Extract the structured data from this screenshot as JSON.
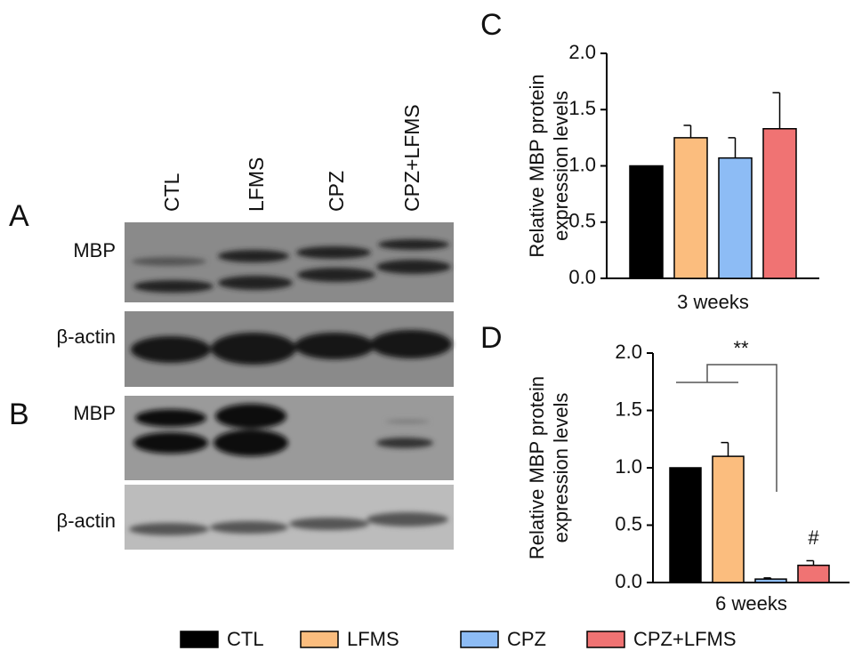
{
  "chart_data": [
    {
      "type": "bar",
      "panel": "C",
      "categories": [
        "3 weeks"
      ],
      "ylabel": [
        "Relative MBP protein",
        "expression levels"
      ],
      "ylim": [
        0,
        2
      ],
      "yticks": [
        {
          "value": 0,
          "label": "0.0"
        },
        {
          "value": 0.5,
          "label": "0.5"
        },
        {
          "value": 1,
          "label": "1.0"
        },
        {
          "value": 1.5,
          "label": "1.5"
        },
        {
          "value": 2,
          "label": "2.0"
        }
      ],
      "series": [
        {
          "name": "CTL",
          "color": "#000000",
          "values": [
            1.0
          ],
          "errors": [
            null
          ]
        },
        {
          "name": "LFMS",
          "color": "#fbbd7e",
          "values": [
            1.25
          ],
          "errors": [
            0.11
          ]
        },
        {
          "name": "CPZ",
          "color": "#8dbcf5",
          "values": [
            1.07
          ],
          "errors": [
            0.18
          ]
        },
        {
          "name": "CPZ+LFMS",
          "color": "#f07373",
          "values": [
            1.33
          ],
          "errors": [
            0.32
          ]
        }
      ]
    },
    {
      "type": "bar",
      "panel": "D",
      "categories": [
        "6 weeks"
      ],
      "ylabel": [
        "Relative MBP protein",
        "expression levels"
      ],
      "ylim": [
        0,
        2
      ],
      "yticks": [
        {
          "value": 0,
          "label": "0.0"
        },
        {
          "value": 0.5,
          "label": "0.5"
        },
        {
          "value": 1,
          "label": "1.0"
        },
        {
          "value": 1.5,
          "label": "1.5"
        },
        {
          "value": 2,
          "label": "2.0"
        }
      ],
      "annotations": [
        "**",
        "#"
      ],
      "series": [
        {
          "name": "CTL",
          "color": "#000000",
          "values": [
            1.0
          ],
          "errors": [
            null
          ]
        },
        {
          "name": "LFMS",
          "color": "#fbbd7e",
          "values": [
            1.1
          ],
          "errors": [
            0.12
          ]
        },
        {
          "name": "CPZ",
          "color": "#8dbcf5",
          "values": [
            0.03
          ],
          "errors": [
            0.01
          ]
        },
        {
          "name": "CPZ+LFMS",
          "color": "#f07373",
          "values": [
            0.15
          ],
          "errors": [
            0.04
          ]
        }
      ]
    }
  ],
  "blots": {
    "lanes": [
      "CTL",
      "LFMS",
      "CPZ",
      "CPZ+LFMS"
    ],
    "panels": [
      {
        "label": "A",
        "rows": [
          "MBP",
          "β-actin"
        ]
      },
      {
        "label": "B",
        "rows": [
          "MBP",
          "β-actin"
        ]
      }
    ]
  }
}
